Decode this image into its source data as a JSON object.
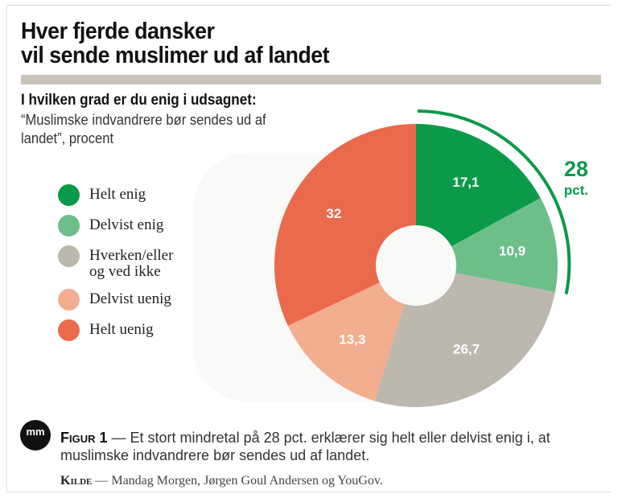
{
  "title_line1": "Hver fjerde dansker",
  "title_line2": "vil sende muslimer ud af landet",
  "question": "I hvilken grad er du enig i udsagnet:",
  "subtitle": "“Muslimske indvandrere bør sendes ud af landet”, procent",
  "logo_text": "mm",
  "caption": {
    "label": "Figur 1",
    "text": " — Et stort mindretal på 28 pct. erklærer sig helt eller delvist enig i, at muslimske indvandrere bør sendes ud af landet."
  },
  "source": {
    "label": "Kilde",
    "text": " — Mandag Morgen, Jørgen Goul Andersen og YouGov."
  },
  "chart_data": {
    "type": "pie",
    "title": "Hver fjerde dansker vil sende muslimer ud af landet",
    "categories": [
      "Helt enig",
      "Delvist enig",
      "Hverken/eller og ved ikke",
      "Delvist uenig",
      "Helt uenig"
    ],
    "values": [
      17.1,
      10.9,
      26.7,
      13.3,
      32
    ],
    "labels": [
      "17,1",
      "10,9",
      "26,7",
      "13,3",
      "32"
    ],
    "colors": [
      "#0b9a49",
      "#6dbf89",
      "#bcb8ae",
      "#f3ad8f",
      "#ea6a4c"
    ],
    "annotation": {
      "value": "28",
      "unit": "pct.",
      "covers": [
        "Helt enig",
        "Delvist enig"
      ],
      "color": "#0b9a49"
    }
  }
}
